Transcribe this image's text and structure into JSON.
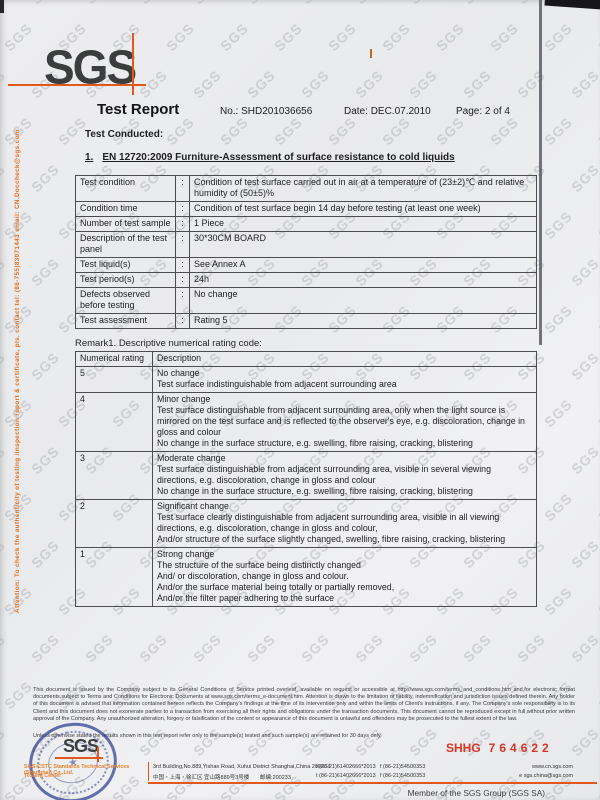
{
  "page": {
    "watermark_text": "SGS",
    "side_note": "Attention: To check the authenticity of testing /inspection report & certificate, pls. contact tel: (86-755)83071443 email: CN.Doccheck@sgs.com"
  },
  "header": {
    "logo_text": "SGS",
    "title": "Test Report",
    "report_no_label": "No.:",
    "report_no": "SHD201036656",
    "date_label": "Date:",
    "date": "DEC.07.2010",
    "page_label": "Page:",
    "page": "2 of 4"
  },
  "section": {
    "test_conducted_label": "Test Conducted:",
    "item_number": "1.",
    "standard_title": "EN 12720:2009 Furniture-Assessment of surface resistance to cold liquids"
  },
  "conditions_table": {
    "rows": [
      {
        "label": "Test condition",
        "sep": ":",
        "value": "Condition of test surface carried out in air at a temperature of (23±2)℃ and relative humidity of (50±5)%"
      },
      {
        "label": "Condition time",
        "sep": ":",
        "value": "Condition of test surface begin 14 day before testing (at least one week)"
      },
      {
        "label": "Number of test sample",
        "sep": ":",
        "value": "1 Piece"
      },
      {
        "label": "Description of the test panel",
        "sep": ":",
        "value": "30*30CM BOARD"
      },
      {
        "label": "Test liquid(s)",
        "sep": ":",
        "value": "See Annex A"
      },
      {
        "label": "Test period(s)",
        "sep": ":",
        "value": "24h"
      },
      {
        "label": "Defects observed before testing",
        "sep": ":",
        "value": "No change"
      },
      {
        "label": "Test assessment",
        "sep": ":",
        "value": "Rating 5"
      }
    ]
  },
  "rating_table": {
    "caption": "Remark1. Descriptive numerical rating code:",
    "headers": [
      "Numerical rating",
      "Description"
    ],
    "rows": [
      {
        "rating": "5",
        "lines": [
          "No change",
          "Test surface indistinguishable from adjacent surrounding area"
        ]
      },
      {
        "rating": "4",
        "lines": [
          "Minor change",
          "Test surface distinguishable from adjacent surrounding area, only when the light source is mirrored on the test surface and is reflected to the observer's eye, e.g. discoloration, change in gloss and colour",
          "No change in the surface structure, e.g. swelling, fibre raising, cracking, blistering"
        ]
      },
      {
        "rating": "3",
        "lines": [
          "Moderate change",
          "Test surface distinguishable from adjacent surrounding area, visible in several viewing directions, e.g. discoloration, change in gloss and colour",
          "No change in the surface structure, e.g. swelling, fibre raising, cracking, blistering"
        ]
      },
      {
        "rating": "2",
        "lines": [
          "Significant change",
          "Test surface clearly distinguishable from adjacent surrounding area, visible in all viewing directions, e.g. discoloration, change in gloss and colour,",
          "And/or structure of the surface slightly changed, swelling, fibre raising, cracking, blistering"
        ]
      },
      {
        "rating": "1",
        "lines": [
          "Strong change",
          "The structure of the surface being distinctly changed",
          "And/ or discoloration, change in gloss and colour.",
          "And/or the surface material being totally or partially removed,",
          "And/or the filter paper adhering to the surface"
        ]
      }
    ]
  },
  "footer": {
    "disclaimer": "This document is issued by the Company subject to its General Conditions of Service printed overleaf, available on request or accessible at http://www.sgs.com/terms_and_conditions.htm and,for electronic format documents,subject to Terms and Conditions for Electronic Documents at www.sgs.com/terms_e-document.htm. Attention is drawn to the limitation of liability, indemnification and jurisdiction issues defined therein. Any holder of this document is advised that information contained hereon reflects the Company's findings at the time of its intervention only and within the limits of Client's instructions, if any. The Company's sole responsibility is to its Client and this document does not exonerate parties to a transaction from exercising all their rights and obligations under the transaction documents. This document cannot be reproduced except in full,without prior written approval of the Company. Any unauthorized alteration, forgery or falsification of the content or appearance of this document is unlawful and offenders may be prosecuted to the fullest extent of the law.",
    "retention_note": "Unless otherwise stated the results shown in this test report refer only to the sample(s) tested and such sample(s) are retained for 30 days only.",
    "logo_text": "SGS",
    "company_line1": "SGS-CSTC Standards Technical Services (Shanghai) Co.,Ltd.",
    "company_line2": "Testing Center",
    "address_en": "3rd Building,No.889,Yishan Road, Xuhui District Shanghai,China 200233",
    "address_cn": "中国・上海・徐汇区 宜山路889号3号楼",
    "postcode": "邮编:200233",
    "tel": "t (86-21)61402666*2013",
    "fax": "f (86-21)54500353",
    "website": "www.cn.sgs.com",
    "email": "e sgs.china@sgs.com",
    "serial_prefix": "SHHG",
    "serial_number": "764622",
    "member_note": "Member of the SGS Group (SGS SA)"
  },
  "colors": {
    "accent_orange": "#e2571c",
    "footer_orange": "#e8822f",
    "serial_red": "#d93425",
    "seal_blue": "#2a3c92",
    "logo_charcoal": "#3b3e3c"
  }
}
